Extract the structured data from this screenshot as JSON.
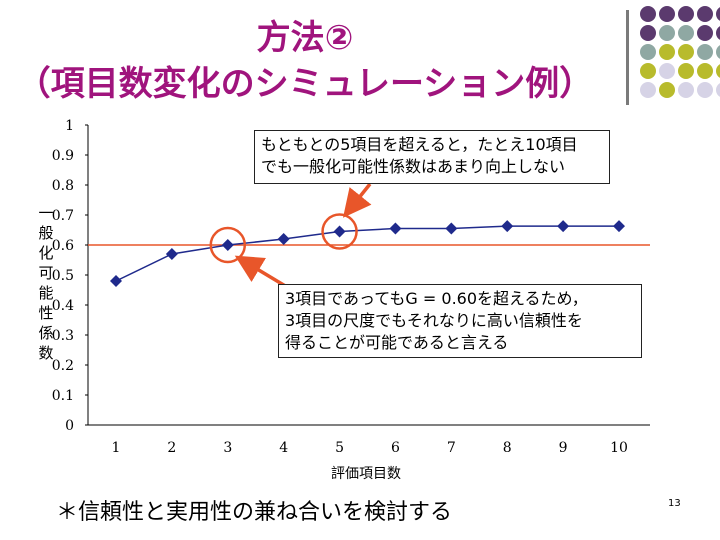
{
  "slide": {
    "title_line1": "方法②",
    "title_line2": "（項目数変化のシミュレーション例）",
    "callout_top": [
      "もともとの5項目を超えると，たとえ10項目",
      "でも一般化可能性係数はあまり向上しない"
    ],
    "callout_bottom": [
      "3項目であってもG = 0.60を超えるため，",
      "3項目の尺度でもそれなりに高い信頼性を",
      "得ることが可能であると言える"
    ],
    "footnote": "＊信頼性と実用性の兼ね合いを検討する",
    "page_number": "13",
    "colors": {
      "title": "#a0147d",
      "accent_purple": "#5b3a6e",
      "accent_teal": "#8fa8a3",
      "accent_olive": "#b8bb2c",
      "accent_lavender": "#d6d3e6",
      "arrow": "#e8562a",
      "series": "#1f2a8c",
      "threshold": "#e8562a"
    },
    "decoration_dot_colors": [
      [
        "#5b3a6e",
        "#5b3a6e",
        "#5b3a6e",
        "#5b3a6e",
        "#5b3a6e"
      ],
      [
        "#5b3a6e",
        "#8fa8a3",
        "#8fa8a3",
        "#5b3a6e",
        "#5b3a6e"
      ],
      [
        "#8fa8a3",
        "#b8bb2c",
        "#b8bb2c",
        "#8fa8a3",
        "#8fa8a3"
      ],
      [
        "#b8bb2c",
        "#d6d3e6",
        "#b8bb2c",
        "#b8bb2c",
        "#b8bb2c"
      ],
      [
        "#d6d3e6",
        "#b8bb2c",
        "#d6d3e6",
        "#d6d3e6",
        "#d6d3e6"
      ]
    ]
  },
  "chart_data": {
    "type": "line",
    "x": [
      1,
      2,
      3,
      4,
      5,
      6,
      7,
      8,
      9,
      10
    ],
    "series": [
      {
        "values": [
          0.48,
          0.57,
          0.6,
          0.62,
          0.645,
          0.655,
          0.655,
          0.663,
          0.663,
          0.663
        ]
      }
    ],
    "xlabel": "評価項目数",
    "ylabel": "一般化可能性係数",
    "ylim": [
      0,
      1
    ],
    "yticks": [
      "0",
      "0.1",
      "0.2",
      "0.3",
      "0.4",
      "0.5",
      "0.6",
      "0.7",
      "0.8",
      "0.9",
      "1"
    ],
    "xticks": [
      "1",
      "2",
      "3",
      "4",
      "5",
      "6",
      "7",
      "8",
      "9",
      "10"
    ],
    "threshold": 0.6,
    "highlighted_x": [
      3,
      5
    ],
    "grid": false,
    "legend": "none"
  }
}
